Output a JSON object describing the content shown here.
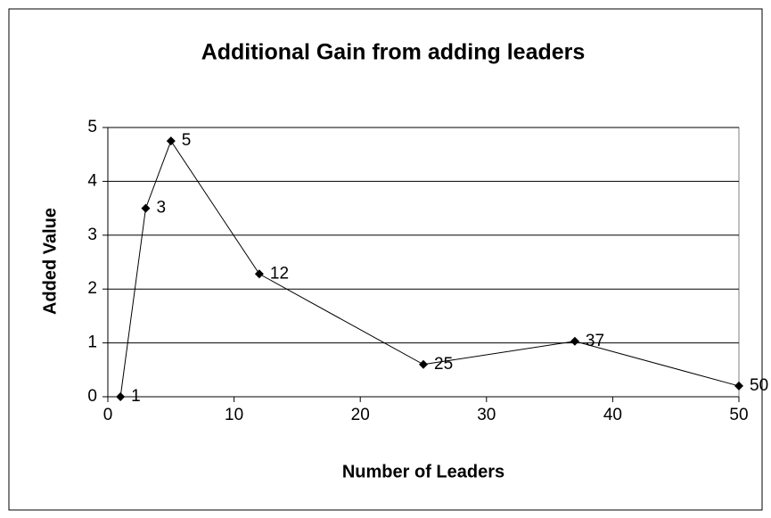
{
  "chart_data": {
    "type": "line",
    "title": "Additional Gain from adding leaders",
    "xlabel": "Number of Leaders",
    "ylabel": "Added Value",
    "x": [
      1,
      3,
      5,
      12,
      25,
      37,
      50
    ],
    "series": [
      {
        "color": "#000000",
        "values": [
          0,
          3.5,
          4.75,
          2.28,
          0.6,
          1.03,
          0.2
        ]
      }
    ],
    "xlim": [
      0,
      50
    ],
    "xticks": [
      0,
      10,
      20,
      30,
      40,
      50
    ],
    "ylim": [
      0,
      5
    ],
    "yticks": [
      0,
      1,
      2,
      3,
      4,
      5
    ],
    "grid": true
  }
}
